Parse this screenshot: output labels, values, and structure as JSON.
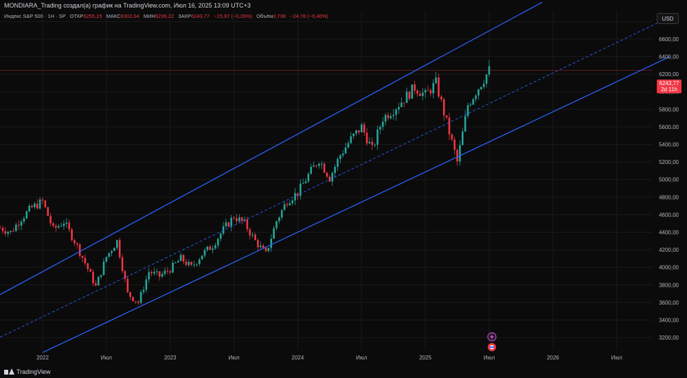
{
  "header": {
    "title": "MONDIARA_Trading создал(а) график на TradingView.com, Июл 16, 2025 13:09 UTC+3"
  },
  "legend": {
    "symbol": "Индекс S&P 500 · 1Н · SP",
    "open_label": "ОТКР",
    "open": "6255,15",
    "high_label": "МАКС",
    "high": "6302,04",
    "low_label": "МИН",
    "low": "6239,22",
    "close_label": "ЗАКР",
    "close": "6243,77",
    "change": "−15,97 (−0,26%)",
    "volume_label": "Объём",
    "volume": "3,738",
    "volume_change": "−24,78 (−0,40%)"
  },
  "currency_button": "USD",
  "price_tag": {
    "price": "6243,77",
    "countdown": "2d 11h"
  },
  "footer": {
    "brand": "TradingView"
  },
  "colors": {
    "up": "#26a69a",
    "down": "#f23645",
    "channel": "#2962ff",
    "background": "#0b0b0b"
  },
  "chart_data": {
    "type": "candlestick",
    "interval": "1 week",
    "yscale": "linear",
    "ylim": [
      3060,
      6920
    ],
    "x_start": "2021-09",
    "x_end": "2026-12",
    "x_tick_labels": [
      "2022",
      "Июл",
      "2023",
      "Июл",
      "2024",
      "Июл",
      "2025",
      "Июл",
      "2026",
      "Июл"
    ],
    "x_tick_dates": [
      "2022-01-01",
      "2022-07-01",
      "2023-01-01",
      "2023-07-01",
      "2024-01-01",
      "2024-07-01",
      "2025-01-01",
      "2025-07-01",
      "2026-01-01",
      "2026-07-01"
    ],
    "y_tick_labels": [
      "3200,00",
      "3400,00",
      "3600,00",
      "3800,00",
      "4000,00",
      "4200,00",
      "4400,00",
      "4600,00",
      "4800,00",
      "5000,00",
      "5200,00",
      "5400,00",
      "5600,00",
      "5800,00",
      "6000,00",
      "6200,00",
      "6400,00",
      "6600,00",
      "6800,00"
    ],
    "y_ticks": [
      3200,
      3400,
      3600,
      3800,
      4000,
      4200,
      4400,
      4600,
      4800,
      5000,
      5200,
      5400,
      5600,
      5800,
      6000,
      6200,
      6400,
      6600,
      6800
    ],
    "last_price": 6243.77,
    "channel": {
      "upper": [
        [
          "2021-09",
          3690
        ],
        [
          "2025-12",
          7020
        ]
      ],
      "middle_dashed": [
        [
          "2021-09",
          3205
        ],
        [
          "2026-12",
          6850
        ]
      ],
      "lower": [
        [
          "2022-01",
          3030
        ],
        [
          "2026-12",
          6400
        ]
      ]
    },
    "candles_close": [
      [
        "2021-09",
        4450
      ],
      [
        "2021-10",
        4400
      ],
      [
        "2021-11",
        4560
      ],
      [
        "2021-12",
        4680
      ],
      [
        "2022-01",
        4750
      ],
      [
        "2022-02",
        4430
      ],
      [
        "2022-03",
        4520
      ],
      [
        "2022-04",
        4300
      ],
      [
        "2022-05",
        4050
      ],
      [
        "2022-06",
        3780
      ],
      [
        "2022-07",
        4120
      ],
      [
        "2022-08",
        4300
      ],
      [
        "2022-09",
        3700
      ],
      [
        "2022-10",
        3600
      ],
      [
        "2022-11",
        3950
      ],
      [
        "2022-12",
        3900
      ],
      [
        "2023-01",
        3980
      ],
      [
        "2023-02",
        4100
      ],
      [
        "2023-03",
        4000
      ],
      [
        "2023-04",
        4150
      ],
      [
        "2023-05",
        4250
      ],
      [
        "2023-06",
        4430
      ],
      [
        "2023-07",
        4580
      ],
      [
        "2023-08",
        4500
      ],
      [
        "2023-09",
        4300
      ],
      [
        "2023-10",
        4150
      ],
      [
        "2023-11",
        4530
      ],
      [
        "2023-12",
        4760
      ],
      [
        "2024-01",
        4850
      ],
      [
        "2024-02",
        5050
      ],
      [
        "2024-03",
        5230
      ],
      [
        "2024-04",
        5020
      ],
      [
        "2024-05",
        5280
      ],
      [
        "2024-06",
        5460
      ],
      [
        "2024-07",
        5600
      ],
      [
        "2024-08",
        5340
      ],
      [
        "2024-09",
        5700
      ],
      [
        "2024-10",
        5800
      ],
      [
        "2024-11",
        5920
      ],
      [
        "2024-12",
        6050
      ],
      [
        "2025-01",
        5960
      ],
      [
        "2025-02",
        6100
      ],
      [
        "2025-03",
        5650
      ],
      [
        "2025-04",
        5200
      ],
      [
        "2025-05",
        5850
      ],
      [
        "2025-06",
        6050
      ],
      [
        "2025-07",
        6244
      ]
    ]
  }
}
